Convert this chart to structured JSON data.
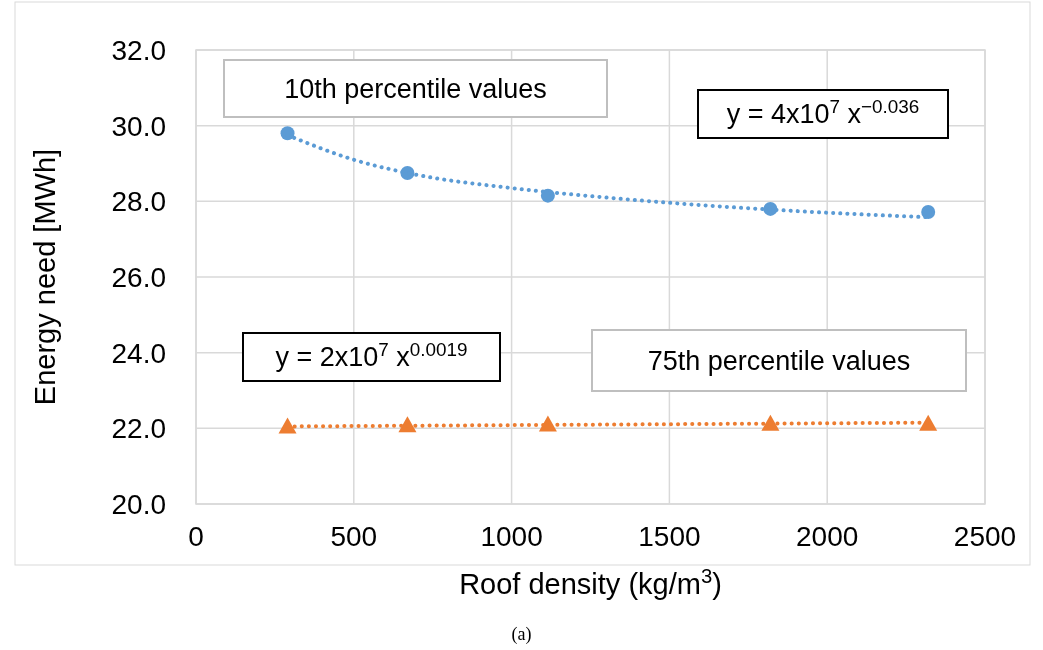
{
  "chart_data": {
    "type": "scatter",
    "xlabel": "Roof density (kg/m$^{3}$)",
    "ylabel": "Energy need [MWh]",
    "xlim": [
      0,
      2500
    ],
    "xticks": [
      0,
      500,
      1000,
      1500,
      2000,
      2500
    ],
    "ylim": [
      20,
      32
    ],
    "yticks": [
      {
        "value": 20,
        "label": "20.0"
      },
      {
        "value": 22,
        "label": "22.0"
      },
      {
        "value": 24,
        "label": "24.0"
      },
      {
        "value": 26,
        "label": "26.0"
      },
      {
        "value": 28,
        "label": "28.0"
      },
      {
        "value": 30,
        "label": "30.0"
      },
      {
        "value": 32,
        "label": "32.0"
      }
    ],
    "grid": true,
    "series": [
      {
        "type": "scatter",
        "color": "#5b9bd5",
        "marker": "circle",
        "x": [
          290,
          670,
          1115,
          1820,
          2320
        ],
        "values": [
          29.8,
          28.75,
          28.15,
          27.8,
          27.72
        ]
      },
      {
        "type": "scatter",
        "color": "#ed7d31",
        "marker": "triangle",
        "x": [
          290,
          670,
          1115,
          1820,
          2320
        ],
        "values": [
          22.05,
          22.08,
          22.1,
          22.12,
          22.12
        ]
      },
      {
        "type": "line",
        "color": "#5b9bd5",
        "marker": "none",
        "line_style": "dotted",
        "x": [
          290,
          500,
          700,
          1000,
          1300,
          1600,
          2000,
          2320
        ],
        "values": [
          29.75,
          29.1,
          28.7,
          28.35,
          28.1,
          27.9,
          27.7,
          27.58
        ]
      },
      {
        "type": "line",
        "color": "#ed7d31",
        "marker": "none",
        "line_style": "dotted",
        "x": [
          290,
          2320
        ],
        "values": [
          22.05,
          22.15
        ]
      }
    ],
    "annotations": [
      "10th percentile values",
      "y = 4x10$^{7}$ x$^{−0.036}$",
      "y = 2x10$^{7}$ x$^{0.0019}$",
      "75th percentile values",
      "(a)"
    ]
  }
}
